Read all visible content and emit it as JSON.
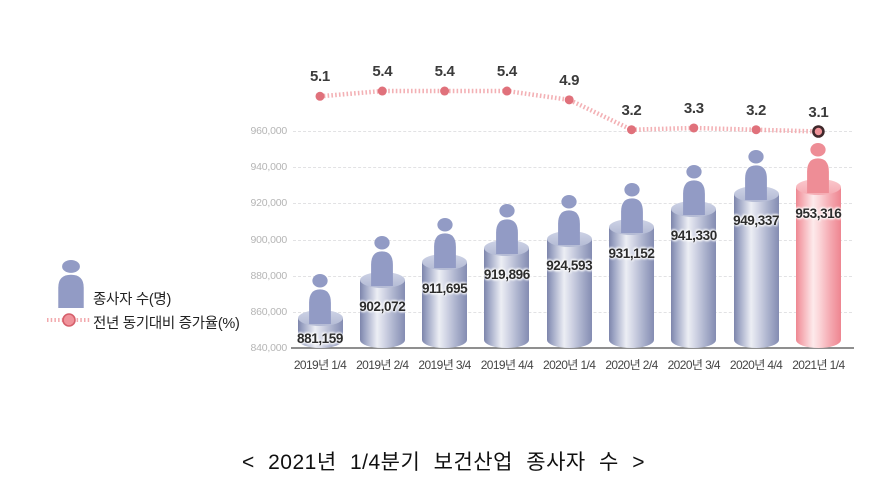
{
  "title": "<  2021년  1/4분기  보건산업  종사자  수  >",
  "legend": {
    "bar_label": "종사자 수(명)",
    "line_label": "전년 동기대비 증가율(%)"
  },
  "colors": {
    "bar": "#929bc5",
    "bar_highlight": "#ee8d96",
    "line": "#f2a9ad",
    "marker": "#e0717b",
    "highlight_marker_fill": "#ee9298",
    "highlight_marker_ring": "#3f282b",
    "value_label": "#2c2c2c",
    "pct_label": "#3b3b3b",
    "y_tick": "#b5b5b5",
    "x_tick": "#454545",
    "axis": "#8f8f8f",
    "grid": "#e2e2e4"
  },
  "chart_data": {
    "type": "bar",
    "combo": "bar+line",
    "title": "< 2021년 1/4분기 보건산업 종사자 수 >",
    "categories": [
      "2019년 1/4",
      "2019년 2/4",
      "2019년 3/4",
      "2019년 4/4",
      "2020년 1/4",
      "2020년 2/4",
      "2020년 3/4",
      "2020년 4/4",
      "2021년 1/4"
    ],
    "series": [
      {
        "name": "종사자 수(명)",
        "type": "bar",
        "values": [
          881159,
          902072,
          911695,
          919896,
          924593,
          931152,
          941330,
          949337,
          953316
        ],
        "value_labels": [
          "881,159",
          "902,072",
          "911,695",
          "919,896",
          "924,593",
          "931,152",
          "941,330",
          "949,337",
          "953,316"
        ]
      },
      {
        "name": "전년 동기대비 증가율(%)",
        "type": "line",
        "values": [
          5.1,
          5.4,
          5.4,
          5.4,
          4.9,
          3.2,
          3.3,
          3.2,
          3.1
        ],
        "value_labels": [
          "5.1",
          "5.4",
          "5.4",
          "5.4",
          "4.9",
          "3.2",
          "3.3",
          "3.2",
          "3.1"
        ]
      }
    ],
    "yaxis": {
      "min": 840000,
      "max": 960000,
      "step": 20000,
      "tick_labels": [
        "840,000",
        "860,000",
        "880,000",
        "900,000",
        "920,000",
        "940,000",
        "960,000"
      ]
    },
    "highlight_index": 8,
    "grid": true,
    "legend_position": "left"
  }
}
